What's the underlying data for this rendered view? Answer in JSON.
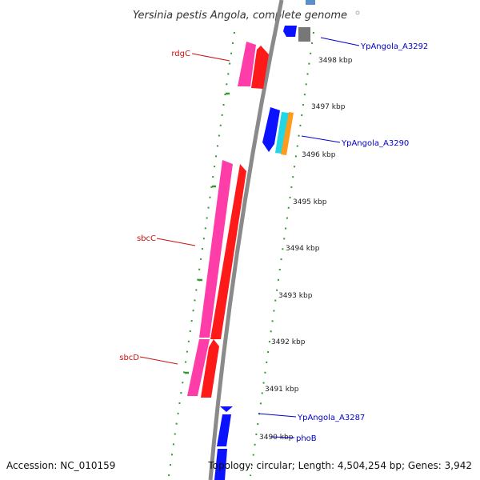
{
  "title": "Yersinia pestis Angola, complete genome",
  "footer": {
    "accession": "Accession: NC_010159",
    "topology": "Topology: circular; Length: 4,504,254 bp; Genes: 3,942"
  },
  "colors": {
    "backbone": "#8a8a8a",
    "tick": "#2f9a2f",
    "label_left": "#cc1111",
    "label_right": "#0000cc",
    "gene_pink": "#ff3da8",
    "gene_red": "#ff1a1a",
    "gene_blue": "#0a12ff",
    "gene_cyan": "#22d6e6",
    "gene_orange": "#ff9a1a",
    "gene_gray": "#777777",
    "gene_steel": "#5a8fc8"
  },
  "ruler": {
    "unit": "kbp",
    "labels": [
      "3498 kbp",
      "3497 kbp",
      "3496 kbp",
      "3495 kbp",
      "3494 kbp",
      "3493 kbp",
      "3492 kbp",
      "3491 kbp",
      "3490 kbp"
    ]
  },
  "gene_labels": {
    "left": [
      "rdgC",
      "sbcC",
      "sbcD"
    ],
    "right": [
      "YpAngola_A3292",
      "YpAngola_A3290",
      "YpAngola_A3287",
      "phoB"
    ]
  }
}
